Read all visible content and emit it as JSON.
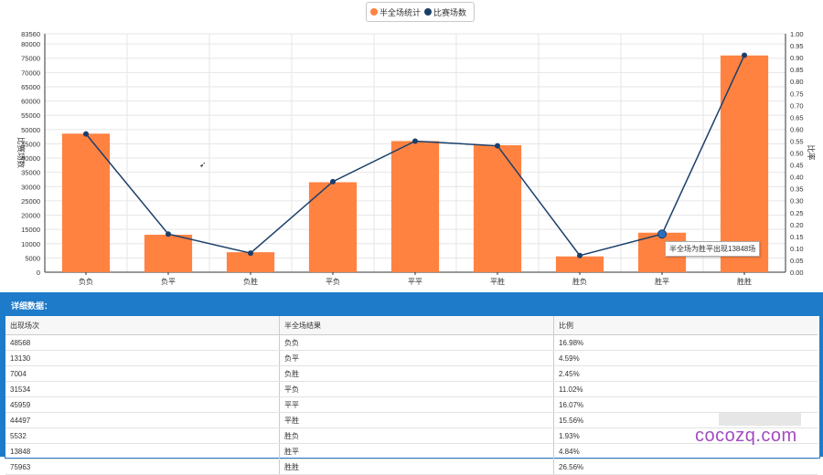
{
  "chart_data": {
    "type": "bar",
    "categories": [
      "负负",
      "负平",
      "负胜",
      "平负",
      "平平",
      "平胜",
      "胜负",
      "胜平",
      "胜胜"
    ],
    "series": [
      {
        "name": "半全场统计",
        "type": "bar",
        "axis": "left",
        "values": [
          48568,
          13130,
          7004,
          31534,
          45959,
          44497,
          5532,
          13848,
          75963
        ]
      },
      {
        "name": "比赛场数",
        "type": "line",
        "axis": "right",
        "values": [
          0.58,
          0.16,
          0.08,
          0.38,
          0.55,
          0.53,
          0.07,
          0.16,
          0.91
        ]
      }
    ],
    "ylabel": "比赛场数",
    "y2label": "比率",
    "ylim": [
      0,
      83560
    ],
    "y2lim": [
      0,
      1.0
    ],
    "yticks": [
      0,
      5000,
      10000,
      15000,
      20000,
      25000,
      30000,
      35000,
      40000,
      45000,
      50000,
      55000,
      60000,
      65000,
      70000,
      75000,
      80000,
      83560
    ],
    "y2ticks": [
      "0.00",
      "0.05",
      "0.10",
      "0.15",
      "0.20",
      "0.25",
      "0.30",
      "0.35",
      "0.40",
      "0.45",
      "0.50",
      "0.55",
      "0.60",
      "0.65",
      "0.70",
      "0.75",
      "0.80",
      "0.85",
      "0.90",
      "0.95",
      "1.00"
    ],
    "grid": true,
    "legend_position": "top-center",
    "colors": {
      "bar": "#ff8241",
      "line": "#1b3f6b",
      "grid": "#e6e6e6"
    }
  },
  "tooltip": {
    "text": "半全场为胜平出现13848场"
  },
  "detail": {
    "title": "详细数据：",
    "headers": [
      "出现场次",
      "半全场结果",
      "比例"
    ],
    "rows": [
      [
        "48568",
        "负负",
        "16.98%"
      ],
      [
        "13130",
        "负平",
        "4.59%"
      ],
      [
        "7004",
        "负胜",
        "2.45%"
      ],
      [
        "31534",
        "平负",
        "11.02%"
      ],
      [
        "45959",
        "平平",
        "16.07%"
      ],
      [
        "44497",
        "平胜",
        "15.56%"
      ],
      [
        "5532",
        "胜负",
        "1.93%"
      ],
      [
        "13848",
        "胜平",
        "4.84%"
      ],
      [
        "75963",
        "胜胜",
        "26.56%"
      ]
    ]
  },
  "watermark": "cocozq.com"
}
